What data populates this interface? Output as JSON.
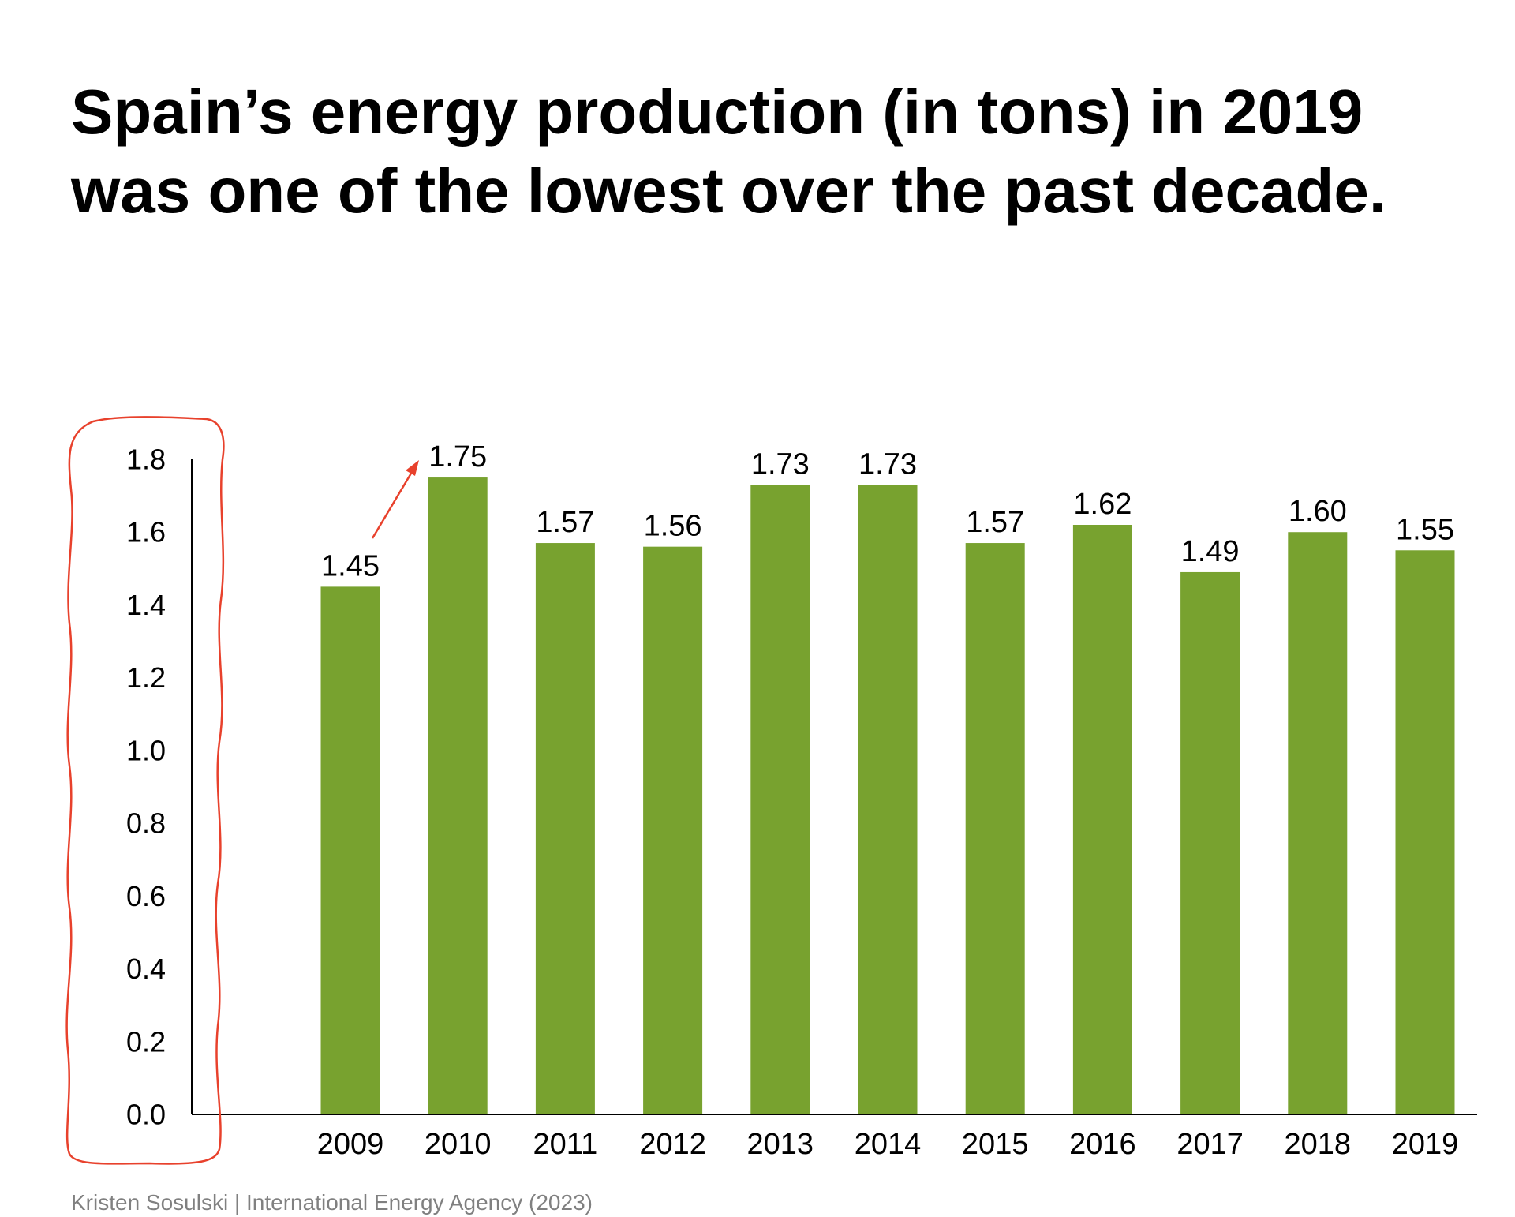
{
  "title": {
    "line1": "Spain’s energy production (in tons) in 2019",
    "line2": "was one of the lowest over the past decade."
  },
  "source": "Kristen Sosulski | International Energy Agency (2023)",
  "colors": {
    "bar": "#78a22f",
    "axis": "#000000",
    "annotation": "#e8412c",
    "text": "#000000",
    "source": "#808080"
  },
  "chart_data": {
    "type": "bar",
    "categories": [
      "2009",
      "2010",
      "2011",
      "2012",
      "2013",
      "2014",
      "2015",
      "2016",
      "2017",
      "2018",
      "2019"
    ],
    "values": [
      1.45,
      1.75,
      1.57,
      1.56,
      1.73,
      1.73,
      1.57,
      1.62,
      1.49,
      1.6,
      1.55
    ],
    "value_labels": [
      "1.45",
      "1.75",
      "1.57",
      "1.56",
      "1.73",
      "1.73",
      "1.57",
      "1.62",
      "1.49",
      "1.60",
      "1.55"
    ],
    "yticks": [
      "0.0",
      "0.2",
      "0.4",
      "0.6",
      "0.8",
      "1.0",
      "1.2",
      "1.4",
      "1.6",
      "1.8"
    ],
    "ylim": [
      0,
      1.8
    ],
    "grid": false,
    "legend": "none",
    "annotations": [
      {
        "type": "arrow",
        "from_category": "2009",
        "to_category": "2010"
      },
      {
        "type": "circle",
        "target": "y-axis tick labels"
      }
    ]
  }
}
